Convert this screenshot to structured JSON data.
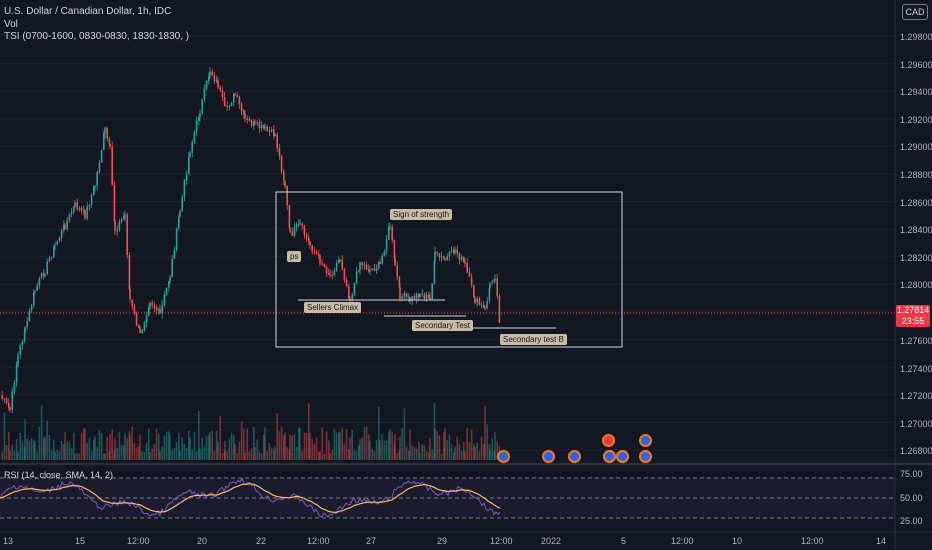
{
  "legend": {
    "symbol": "U.S. Dollar / Canadian Dollar, 1h, IDC",
    "vol": "Vol",
    "tsi": "TSI (0700-1600, 0830-0830, 1830-1830, )"
  },
  "currency_button": "CAD",
  "menu_glyph": "1",
  "price_axis": [
    "1.29800",
    "1.29600",
    "1.29400",
    "1.29200",
    "1.29000",
    "1.28800",
    "1.28600",
    "1.28400",
    "1.28200",
    "1.28000",
    "1.27600",
    "1.27400",
    "1.27200",
    "1.27000",
    "1.26800"
  ],
  "current_price": {
    "value": "1.27814",
    "countdown": "23:55"
  },
  "time_axis": [
    "13",
    "15",
    "12:00",
    "20",
    "22",
    "12:00",
    "27",
    "29",
    "12:00",
    "2022",
    "5",
    "12:00",
    "10",
    "12:00",
    "14"
  ],
  "annotations": {
    "ps": "ps",
    "sign_of_strength": "Sign of strength",
    "sellers_climax": "Sellers Climax",
    "secondary_test": "Secondary Test",
    "secondary_test_b": "Secondary test B"
  },
  "rsi": {
    "legend": "RSI (14, close, SMA, 14, 2)",
    "levels": [
      "75.00",
      "50.00",
      "25.00"
    ]
  },
  "colors": {
    "background": "#131722",
    "bull": "#26a69a",
    "bear": "#ef5350",
    "rsi_line": "#7e57c2",
    "rsi_ma": "#f7b75d",
    "box": "#d1d4dc",
    "current_price": "#f23645",
    "annotation_bg": "#c8bca4"
  },
  "icons": [
    "event-flag-icon",
    "currency-icon"
  ]
}
